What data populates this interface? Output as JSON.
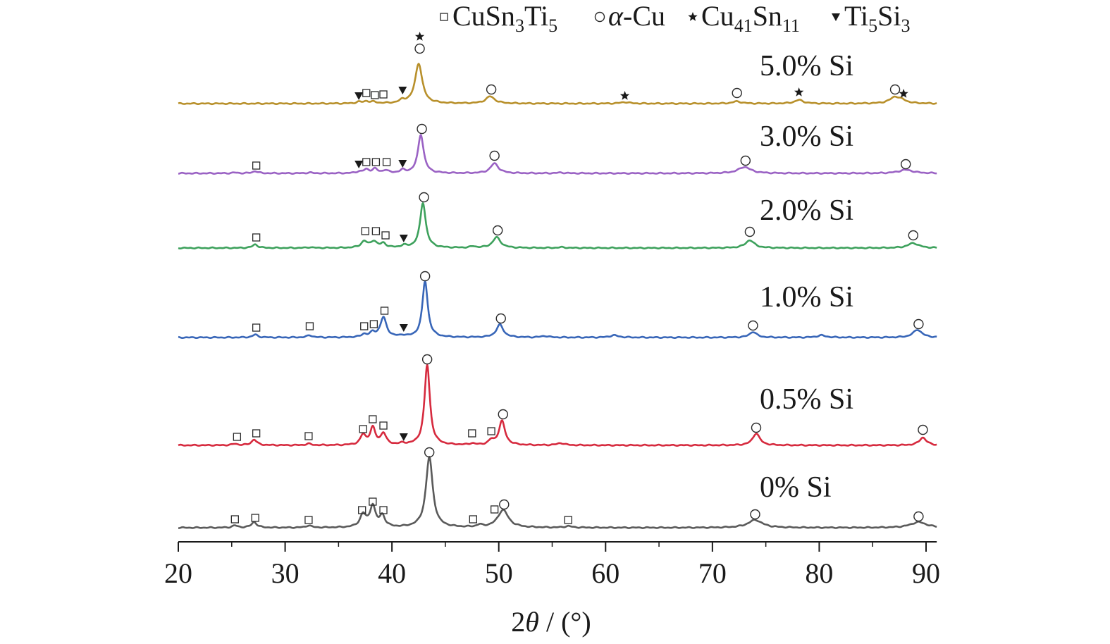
{
  "chart_data": {
    "type": "line",
    "title": "",
    "xlabel": "2θ / (°)",
    "ylabel": "",
    "xlim": [
      20,
      91
    ],
    "xticks": [
      20,
      30,
      40,
      50,
      60,
      70,
      80,
      90
    ],
    "xtick_labels": [
      "20",
      "30",
      "40",
      "50",
      "60",
      "70",
      "80",
      "90"
    ],
    "y_axis_shown": false,
    "grid": false,
    "legend_position": "top-right",
    "legend": [
      {
        "symbol": "square",
        "glyph": "□",
        "parts": [
          [
            "CuSn",
            ""
          ],
          [
            "3",
            "sub"
          ],
          [
            "Ti",
            ""
          ],
          [
            "5",
            "sub"
          ]
        ]
      },
      {
        "symbol": "circle",
        "glyph": "○",
        "parts": [
          [
            "α",
            "italic"
          ],
          [
            "-Cu",
            ""
          ]
        ]
      },
      {
        "symbol": "star",
        "glyph": "★",
        "parts": [
          [
            "Cu",
            ""
          ],
          [
            "41",
            "sub"
          ],
          [
            "Sn",
            ""
          ],
          [
            "11",
            "sub"
          ]
        ]
      },
      {
        "symbol": "triangle-down",
        "glyph": "▼",
        "parts": [
          [
            "Ti",
            ""
          ],
          [
            "5",
            "sub"
          ],
          [
            "Si",
            ""
          ],
          [
            "3",
            "sub"
          ]
        ]
      }
    ],
    "series": [
      {
        "name": "0% Si",
        "color": "#5a5a5a",
        "baseline": 0,
        "peaks": [
          [
            25.3,
            3,
            0.3
          ],
          [
            27.1,
            8,
            0.3
          ],
          [
            32.2,
            3,
            0.3
          ],
          [
            37.3,
            18,
            0.35
          ],
          [
            38.2,
            30,
            0.3
          ],
          [
            39.1,
            16,
            0.3
          ],
          [
            43.5,
            100,
            0.38
          ],
          [
            48.2,
            3,
            0.3
          ],
          [
            50.4,
            25,
            0.6
          ],
          [
            56.5,
            2,
            0.4
          ],
          [
            74.0,
            11,
            0.8
          ],
          [
            89.3,
            8,
            0.9
          ]
        ],
        "markers": [
          {
            "x": 25.3,
            "y": 12,
            "symbol": "square"
          },
          {
            "x": 27.2,
            "y": 14,
            "symbol": "square"
          },
          {
            "x": 32.2,
            "y": 11,
            "symbol": "square"
          },
          {
            "x": 37.2,
            "y": 25,
            "symbol": "square"
          },
          {
            "x": 38.2,
            "y": 37,
            "symbol": "square"
          },
          {
            "x": 39.2,
            "y": 25,
            "symbol": "square"
          },
          {
            "x": 43.5,
            "y": 107,
            "symbol": "circle"
          },
          {
            "x": 47.6,
            "y": 12,
            "symbol": "square"
          },
          {
            "x": 49.6,
            "y": 26,
            "symbol": "square"
          },
          {
            "x": 50.5,
            "y": 33,
            "symbol": "circle"
          },
          {
            "x": 56.5,
            "y": 11,
            "symbol": "square"
          },
          {
            "x": 74.0,
            "y": 19,
            "symbol": "circle"
          },
          {
            "x": 89.3,
            "y": 16,
            "symbol": "circle"
          }
        ]
      },
      {
        "name": "0.5% Si",
        "color": "#d62a3e",
        "baseline": 0,
        "peaks": [
          [
            25.3,
            2,
            0.3
          ],
          [
            27.1,
            8,
            0.3
          ],
          [
            32.2,
            2,
            0.3
          ],
          [
            37.3,
            14,
            0.3
          ],
          [
            38.2,
            24,
            0.3
          ],
          [
            39.2,
            16,
            0.3
          ],
          [
            41.0,
            2,
            0.3
          ],
          [
            43.3,
            114,
            0.3
          ],
          [
            47.5,
            2,
            0.3
          ],
          [
            49.3,
            6,
            0.3
          ],
          [
            50.3,
            34,
            0.35
          ],
          [
            55.8,
            3,
            0.4
          ],
          [
            74.1,
            17,
            0.4
          ],
          [
            89.7,
            11,
            0.4
          ]
        ],
        "markers": [
          {
            "x": 25.5,
            "y": 12,
            "symbol": "square"
          },
          {
            "x": 27.3,
            "y": 17,
            "symbol": "square"
          },
          {
            "x": 32.2,
            "y": 13,
            "symbol": "square"
          },
          {
            "x": 37.3,
            "y": 23,
            "symbol": "square"
          },
          {
            "x": 38.2,
            "y": 37,
            "symbol": "square"
          },
          {
            "x": 39.2,
            "y": 28,
            "symbol": "square"
          },
          {
            "x": 41.1,
            "y": 12,
            "symbol": "triangle-down"
          },
          {
            "x": 43.3,
            "y": 122,
            "symbol": "circle"
          },
          {
            "x": 47.5,
            "y": 17,
            "symbol": "square"
          },
          {
            "x": 49.3,
            "y": 20,
            "symbol": "square"
          },
          {
            "x": 50.4,
            "y": 44,
            "symbol": "circle"
          },
          {
            "x": 74.1,
            "y": 25,
            "symbol": "circle"
          },
          {
            "x": 89.7,
            "y": 22,
            "symbol": "circle"
          }
        ]
      },
      {
        "name": "1.0% Si",
        "color": "#3866b8",
        "baseline": 0,
        "peaks": [
          [
            27.2,
            4,
            0.3
          ],
          [
            32.3,
            3,
            0.3
          ],
          [
            37.4,
            4,
            0.3
          ],
          [
            38.2,
            6,
            0.3
          ],
          [
            39.2,
            28,
            0.35
          ],
          [
            41.0,
            2,
            0.3
          ],
          [
            43.1,
            80,
            0.3
          ],
          [
            50.1,
            18,
            0.4
          ],
          [
            54.3,
            2,
            0.4
          ],
          [
            60.8,
            3,
            0.5
          ],
          [
            73.8,
            8,
            0.4
          ],
          [
            80.2,
            3,
            0.5
          ],
          [
            89.2,
            11,
            0.5
          ]
        ],
        "markers": [
          {
            "x": 27.3,
            "y": 14,
            "symbol": "square"
          },
          {
            "x": 32.3,
            "y": 16,
            "symbol": "square"
          },
          {
            "x": 37.4,
            "y": 16,
            "symbol": "square"
          },
          {
            "x": 38.3,
            "y": 19,
            "symbol": "square"
          },
          {
            "x": 39.3,
            "y": 38,
            "symbol": "square"
          },
          {
            "x": 41.1,
            "y": 14,
            "symbol": "triangle-down"
          },
          {
            "x": 43.1,
            "y": 87,
            "symbol": "circle"
          },
          {
            "x": 50.2,
            "y": 27,
            "symbol": "circle"
          },
          {
            "x": 73.8,
            "y": 17,
            "symbol": "circle"
          },
          {
            "x": 89.3,
            "y": 19,
            "symbol": "circle"
          }
        ]
      },
      {
        "name": "2.0% Si",
        "color": "#3da15c",
        "baseline": 0,
        "peaks": [
          [
            27.2,
            5,
            0.3
          ],
          [
            32.3,
            1,
            0.3
          ],
          [
            37.4,
            9,
            0.35
          ],
          [
            38.3,
            9,
            0.35
          ],
          [
            39.2,
            6,
            0.3
          ],
          [
            41.1,
            3,
            0.3
          ],
          [
            42.9,
            64,
            0.32
          ],
          [
            47.6,
            2,
            0.3
          ],
          [
            49.8,
            15,
            0.45
          ],
          [
            55.9,
            1,
            0.4
          ],
          [
            73.5,
            11,
            0.5
          ],
          [
            88.8,
            7,
            0.6
          ]
        ],
        "markers": [
          {
            "x": 27.3,
            "y": 15,
            "symbol": "square"
          },
          {
            "x": 37.5,
            "y": 24,
            "symbol": "square"
          },
          {
            "x": 38.5,
            "y": 24,
            "symbol": "square"
          },
          {
            "x": 39.4,
            "y": 18,
            "symbol": "square"
          },
          {
            "x": 41.1,
            "y": 14,
            "symbol": "triangle-down"
          },
          {
            "x": 43.0,
            "y": 72,
            "symbol": "circle"
          },
          {
            "x": 49.9,
            "y": 25,
            "symbol": "circle"
          },
          {
            "x": 73.5,
            "y": 23,
            "symbol": "circle"
          },
          {
            "x": 88.8,
            "y": 18,
            "symbol": "circle"
          }
        ]
      },
      {
        "name": "3.0% Si",
        "color": "#9a62c4",
        "baseline": 0,
        "peaks": [
          [
            25.3,
            1,
            0.3
          ],
          [
            27.2,
            3,
            0.3
          ],
          [
            32.3,
            1,
            0.3
          ],
          [
            36.9,
            2,
            0.3
          ],
          [
            37.6,
            5,
            0.3
          ],
          [
            38.4,
            6,
            0.3
          ],
          [
            39.4,
            4,
            0.3
          ],
          [
            41.0,
            4,
            0.3
          ],
          [
            42.7,
            55,
            0.32
          ],
          [
            49.6,
            14,
            0.45
          ],
          [
            55.8,
            1,
            0.4
          ],
          [
            73.0,
            9,
            0.7
          ],
          [
            88.1,
            5,
            0.8
          ]
        ],
        "markers": [
          {
            "x": 27.3,
            "y": 11,
            "symbol": "square"
          },
          {
            "x": 36.9,
            "y": 13,
            "symbol": "triangle-down"
          },
          {
            "x": 37.6,
            "y": 16,
            "symbol": "square"
          },
          {
            "x": 38.5,
            "y": 16,
            "symbol": "square"
          },
          {
            "x": 39.5,
            "y": 16,
            "symbol": "square"
          },
          {
            "x": 41.0,
            "y": 14,
            "symbol": "triangle-down"
          },
          {
            "x": 42.8,
            "y": 63,
            "symbol": "circle"
          },
          {
            "x": 49.6,
            "y": 25,
            "symbol": "circle"
          },
          {
            "x": 73.1,
            "y": 18,
            "symbol": "circle"
          },
          {
            "x": 88.1,
            "y": 13,
            "symbol": "circle"
          }
        ]
      },
      {
        "name": "5.0% Si",
        "color": "#b8902b",
        "baseline": 0,
        "peaks": [
          [
            36.9,
            2,
            0.3
          ],
          [
            37.6,
            3,
            0.3
          ],
          [
            38.3,
            2,
            0.3
          ],
          [
            41.0,
            4,
            0.3
          ],
          [
            42.5,
            57,
            0.4
          ],
          [
            49.2,
            10,
            0.5
          ],
          [
            61.8,
            2,
            0.5
          ],
          [
            72.3,
            3,
            0.5
          ],
          [
            78.1,
            5,
            0.5
          ],
          [
            87.1,
            9,
            0.6
          ],
          [
            87.8,
            3,
            0.5
          ]
        ],
        "markers": [
          {
            "x": 36.9,
            "y": 11,
            "symbol": "triangle-down"
          },
          {
            "x": 37.6,
            "y": 15,
            "symbol": "square"
          },
          {
            "x": 38.4,
            "y": 12,
            "symbol": "square"
          },
          {
            "x": 39.2,
            "y": 13,
            "symbol": "square"
          },
          {
            "x": 41.0,
            "y": 19,
            "symbol": "triangle-down"
          },
          {
            "x": 42.6,
            "y": 78,
            "symbol": "circle"
          },
          {
            "x": 42.6,
            "y": 95,
            "symbol": "star"
          },
          {
            "x": 49.3,
            "y": 20,
            "symbol": "circle"
          },
          {
            "x": 61.8,
            "y": 11,
            "symbol": "star"
          },
          {
            "x": 72.3,
            "y": 15,
            "symbol": "circle"
          },
          {
            "x": 78.1,
            "y": 16,
            "symbol": "star"
          },
          {
            "x": 87.1,
            "y": 20,
            "symbol": "circle"
          },
          {
            "x": 87.9,
            "y": 14,
            "symbol": "star"
          }
        ]
      }
    ]
  }
}
